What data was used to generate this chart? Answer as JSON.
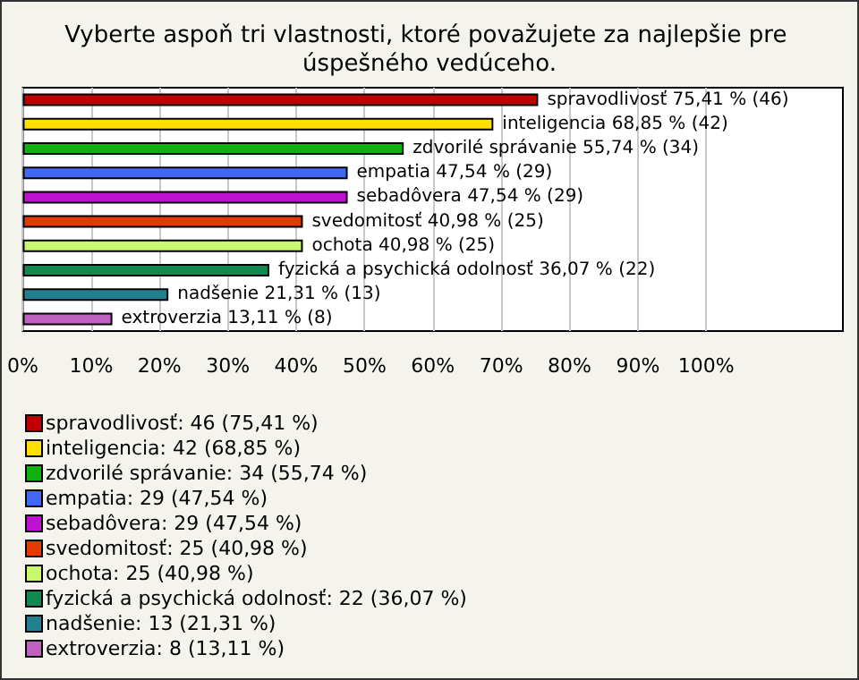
{
  "chart_data": {
    "type": "bar",
    "orientation": "horizontal",
    "stacked": true,
    "title": "Vyberte aspoň tri vlastnosti, ktoré považujete za najlepšie pre úspešného vedúceho.",
    "categories": [
      null,
      null,
      null,
      null,
      null,
      null,
      null,
      null,
      null,
      null
    ],
    "series": [
      {
        "name": "spravodlivosť: 46 (75,41 %)",
        "color": "#c00000",
        "values": [
          75.41,
          null,
          null,
          null,
          null,
          null,
          null,
          null,
          null,
          null
        ],
        "value_labels": [
          "spravodlivosť 75,41 % (46)",
          null,
          null,
          null,
          null,
          null,
          null,
          null,
          null,
          null
        ]
      },
      {
        "name": "inteligencia: 42 (68,85 %)",
        "color": "#ffe000",
        "values": [
          null,
          68.85,
          null,
          null,
          null,
          null,
          null,
          null,
          null,
          null
        ],
        "value_labels": [
          null,
          "inteligencia 68,85 % (42)",
          null,
          null,
          null,
          null,
          null,
          null,
          null,
          null
        ]
      },
      {
        "name": "zdvorilé správanie: 34 (55,74 %)",
        "color": "#10b010",
        "values": [
          null,
          null,
          55.74,
          null,
          null,
          null,
          null,
          null,
          null,
          null
        ],
        "value_labels": [
          null,
          null,
          "zdvorilé správanie 55,74 % (34)",
          null,
          null,
          null,
          null,
          null,
          null,
          null
        ]
      },
      {
        "name": "empatia: 29 (47,54 %)",
        "color": "#4068f0",
        "values": [
          null,
          null,
          null,
          47.54,
          null,
          null,
          null,
          null,
          null,
          null
        ],
        "value_labels": [
          null,
          null,
          null,
          "empatia 47,54 % (29)",
          null,
          null,
          null,
          null,
          null,
          null
        ]
      },
      {
        "name": "sebadôvera: 29 (47,54 %)",
        "color": "#c010d0",
        "values": [
          null,
          null,
          null,
          null,
          47.54,
          null,
          null,
          null,
          null,
          null
        ],
        "value_labels": [
          null,
          null,
          null,
          null,
          "sebadôvera 47,54 % (29)",
          null,
          null,
          null,
          null,
          null
        ]
      },
      {
        "name": "svedomitosť: 25 (40,98 %)",
        "color": "#e03c00",
        "values": [
          null,
          null,
          null,
          null,
          null,
          40.98,
          null,
          null,
          null,
          null
        ],
        "value_labels": [
          null,
          null,
          null,
          null,
          null,
          "svedomitosť 40,98 % (25)",
          null,
          null,
          null,
          null
        ]
      },
      {
        "name": "ochota: 25 (40,98 %)",
        "color": "#c8f870",
        "values": [
          null,
          null,
          null,
          null,
          null,
          null,
          40.98,
          null,
          null,
          null
        ],
        "value_labels": [
          null,
          null,
          null,
          null,
          null,
          null,
          "ochota 40,98 % (25)",
          null,
          null,
          null
        ]
      },
      {
        "name": "fyzická a psychická odolnosť: 22 (36,07 %)",
        "color": "#108850",
        "values": [
          null,
          null,
          null,
          null,
          null,
          null,
          null,
          36.07,
          null,
          null
        ],
        "value_labels": [
          null,
          null,
          null,
          null,
          null,
          null,
          null,
          "fyzická a psychická odolnosť 36,07 % (22)",
          null,
          null
        ]
      },
      {
        "name": "nadšenie: 13 (21,31 %)",
        "color": "#208090",
        "values": [
          null,
          null,
          null,
          null,
          null,
          null,
          null,
          null,
          21.31,
          null
        ],
        "value_labels": [
          null,
          null,
          null,
          null,
          null,
          null,
          null,
          null,
          "nadšenie 21,31 % (13)",
          null
        ]
      },
      {
        "name": "extroverzia: 8 (13,11 %)",
        "color": "#c060c0",
        "values": [
          null,
          null,
          null,
          null,
          null,
          null,
          null,
          null,
          null,
          13.11
        ],
        "value_labels": [
          null,
          null,
          null,
          null,
          null,
          null,
          null,
          null,
          null,
          "extroverzia 13,11 % (8)"
        ]
      }
    ],
    "xlim": [
      0,
      120
    ],
    "xticks": [
      {
        "value": 0,
        "label": "0%"
      },
      {
        "value": 10,
        "label": "10%"
      },
      {
        "value": 20,
        "label": "20%"
      },
      {
        "value": 30,
        "label": "30%"
      },
      {
        "value": 40,
        "label": "40%"
      },
      {
        "value": 50,
        "label": "50%"
      },
      {
        "value": 60,
        "label": "60%"
      },
      {
        "value": 70,
        "label": "70%"
      },
      {
        "value": 80,
        "label": "80%"
      },
      {
        "value": 90,
        "label": "90%"
      },
      {
        "value": 100,
        "label": "100%"
      }
    ],
    "grid": "x",
    "legend": "bottom",
    "tick_labels": "x"
  }
}
